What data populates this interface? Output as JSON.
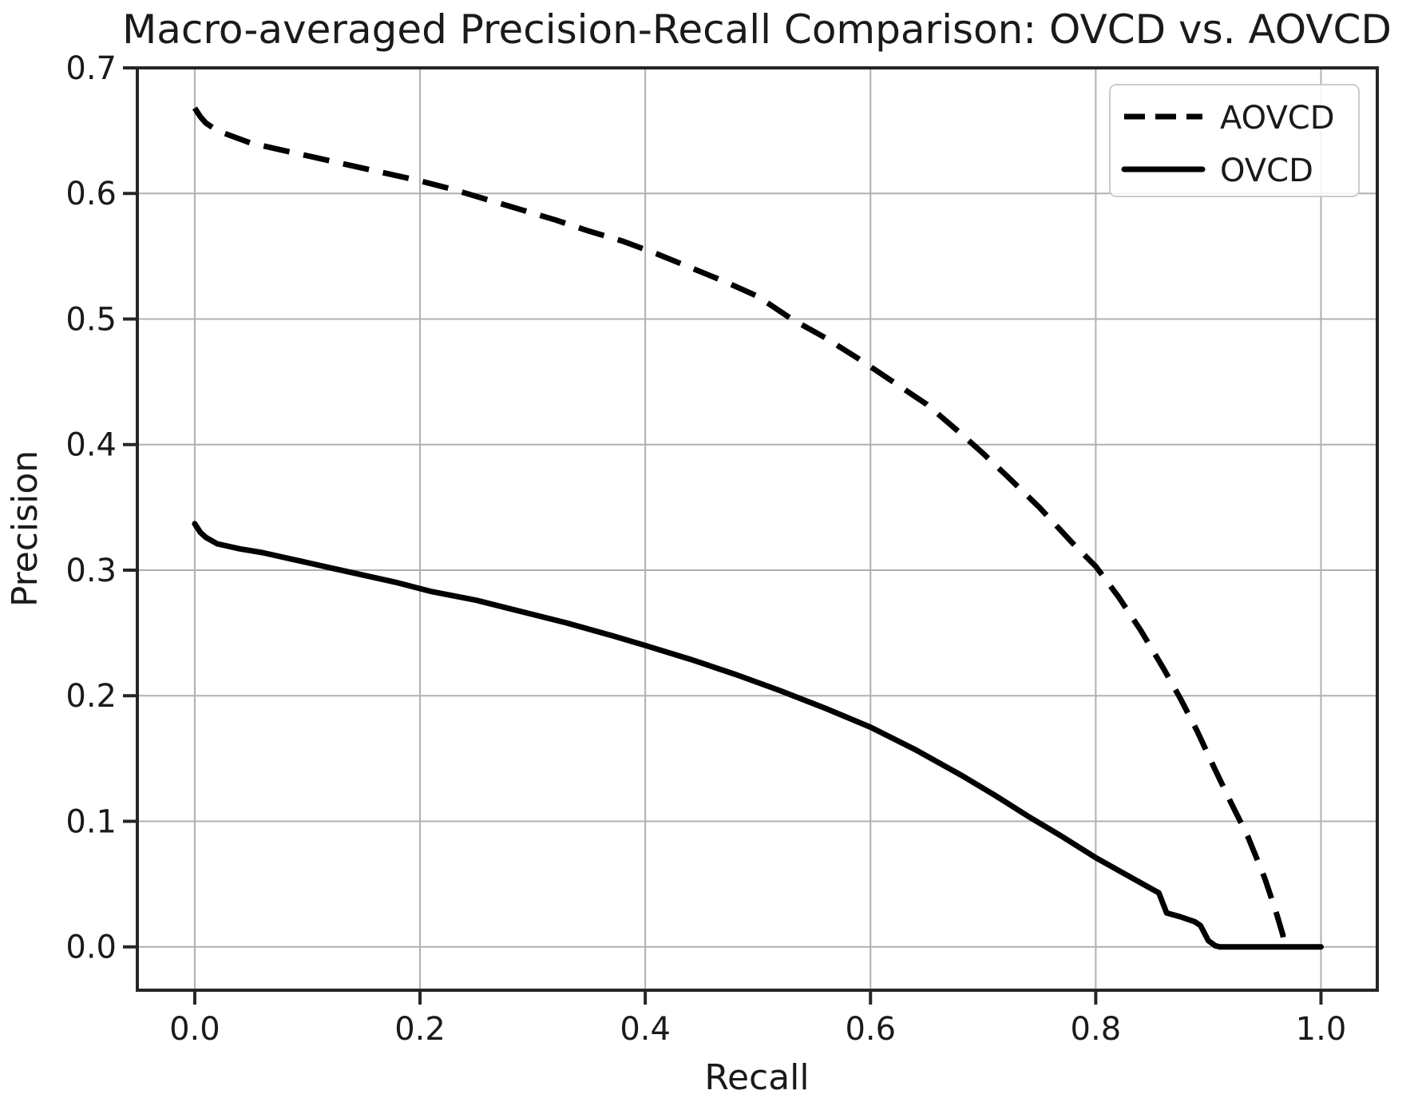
{
  "figure": {
    "background": "#ffffff"
  },
  "chart_data": {
    "type": "line",
    "title": "Macro-averaged Precision-Recall Comparison: OVCD vs. AOVCD",
    "xlabel": "Recall",
    "ylabel": "Precision",
    "xlim": [
      -0.051,
      1.05
    ],
    "ylim": [
      -0.0345,
      0.7
    ],
    "x_ticks": [
      0.0,
      0.2,
      0.4,
      0.6,
      0.8,
      1.0
    ],
    "x_tick_labels": [
      "0.0",
      "0.2",
      "0.4",
      "0.6",
      "0.8",
      "1.0"
    ],
    "y_ticks": [
      0.0,
      0.1,
      0.2,
      0.3,
      0.4,
      0.5,
      0.6,
      0.7
    ],
    "y_tick_labels": [
      "0.0",
      "0.1",
      "0.2",
      "0.3",
      "0.4",
      "0.5",
      "0.6",
      "0.7"
    ],
    "grid": true,
    "legend_position": "upper right",
    "colors": {
      "line": "#000000",
      "grid": "#b0b0b0",
      "spine": "#262626",
      "text": "#1a1a1a",
      "legend_border": "#cccccc"
    },
    "series": [
      {
        "name": "AOVCD",
        "style": "dashed",
        "points": [
          [
            0.0,
            0.668
          ],
          [
            0.005,
            0.661
          ],
          [
            0.01,
            0.656
          ],
          [
            0.02,
            0.65
          ],
          [
            0.035,
            0.645
          ],
          [
            0.05,
            0.64
          ],
          [
            0.08,
            0.634
          ],
          [
            0.11,
            0.628
          ],
          [
            0.14,
            0.622
          ],
          [
            0.17,
            0.616
          ],
          [
            0.2,
            0.61
          ],
          [
            0.23,
            0.603
          ],
          [
            0.26,
            0.595
          ],
          [
            0.29,
            0.587
          ],
          [
            0.32,
            0.579
          ],
          [
            0.35,
            0.57
          ],
          [
            0.38,
            0.562
          ],
          [
            0.41,
            0.552
          ],
          [
            0.44,
            0.541
          ],
          [
            0.47,
            0.53
          ],
          [
            0.5,
            0.518
          ],
          [
            0.53,
            0.5
          ],
          [
            0.56,
            0.485
          ],
          [
            0.59,
            0.468
          ],
          [
            0.62,
            0.45
          ],
          [
            0.65,
            0.432
          ],
          [
            0.68,
            0.409
          ],
          [
            0.7,
            0.393
          ],
          [
            0.72,
            0.376
          ],
          [
            0.75,
            0.35
          ],
          [
            0.78,
            0.321
          ],
          [
            0.8,
            0.303
          ],
          [
            0.82,
            0.279
          ],
          [
            0.84,
            0.252
          ],
          [
            0.86,
            0.222
          ],
          [
            0.875,
            0.198
          ],
          [
            0.89,
            0.172
          ],
          [
            0.905,
            0.143
          ],
          [
            0.92,
            0.115
          ],
          [
            0.935,
            0.088
          ],
          [
            0.95,
            0.055
          ],
          [
            0.96,
            0.028
          ],
          [
            0.966,
            0.01
          ],
          [
            0.968,
            0.0
          ]
        ]
      },
      {
        "name": "OVCD",
        "style": "solid",
        "points": [
          [
            0.0,
            0.337
          ],
          [
            0.005,
            0.33
          ],
          [
            0.01,
            0.326
          ],
          [
            0.02,
            0.321
          ],
          [
            0.04,
            0.317
          ],
          [
            0.06,
            0.314
          ],
          [
            0.09,
            0.308
          ],
          [
            0.12,
            0.302
          ],
          [
            0.15,
            0.296
          ],
          [
            0.18,
            0.29
          ],
          [
            0.21,
            0.283
          ],
          [
            0.25,
            0.276
          ],
          [
            0.29,
            0.267
          ],
          [
            0.33,
            0.258
          ],
          [
            0.37,
            0.248
          ],
          [
            0.4,
            0.24
          ],
          [
            0.44,
            0.229
          ],
          [
            0.48,
            0.217
          ],
          [
            0.52,
            0.204
          ],
          [
            0.56,
            0.19
          ],
          [
            0.6,
            0.175
          ],
          [
            0.64,
            0.157
          ],
          [
            0.68,
            0.137
          ],
          [
            0.71,
            0.121
          ],
          [
            0.74,
            0.104
          ],
          [
            0.77,
            0.088
          ],
          [
            0.8,
            0.071
          ],
          [
            0.83,
            0.056
          ],
          [
            0.85,
            0.046
          ],
          [
            0.856,
            0.043
          ],
          [
            0.863,
            0.027
          ],
          [
            0.875,
            0.024
          ],
          [
            0.888,
            0.02
          ],
          [
            0.893,
            0.017
          ],
          [
            0.9,
            0.005
          ],
          [
            0.906,
            0.001
          ],
          [
            0.91,
            0.0
          ],
          [
            0.96,
            0.0
          ],
          [
            1.0,
            0.0
          ]
        ]
      }
    ]
  }
}
